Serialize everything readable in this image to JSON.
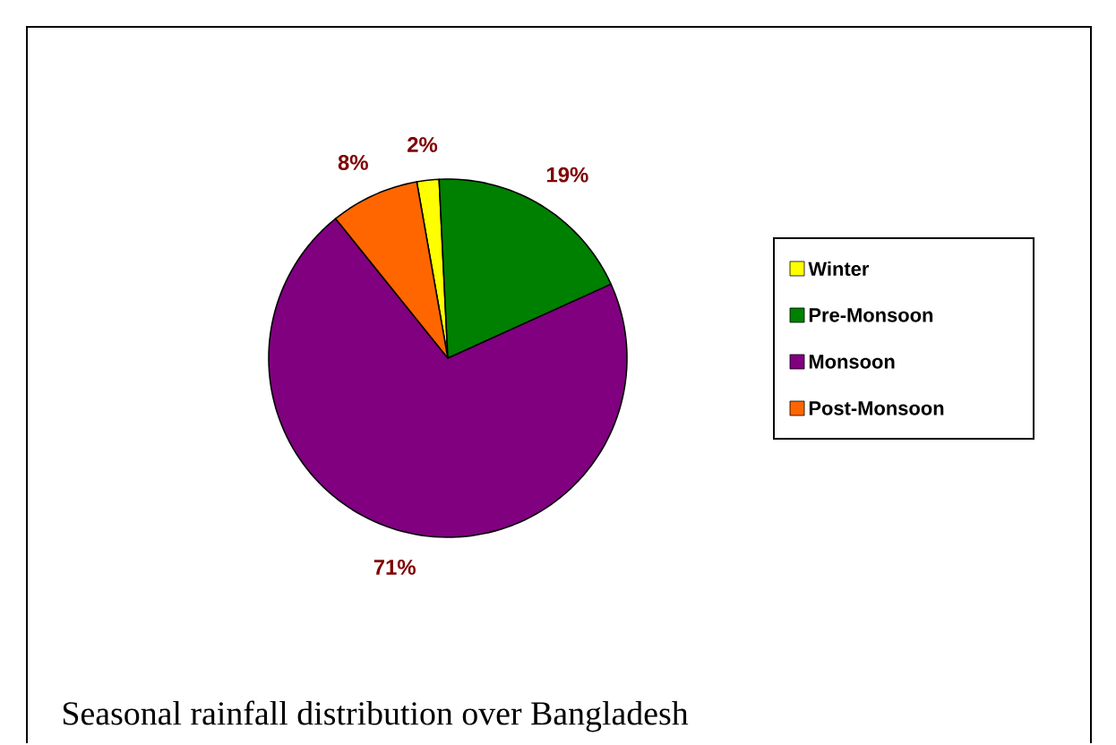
{
  "chart_data": {
    "type": "pie",
    "categories": [
      "Winter",
      "Pre-Monsoon",
      "Monsoon",
      "Post-Monsoon"
    ],
    "values": [
      2,
      19,
      71,
      8
    ],
    "colors": [
      "#ffff00",
      "#008000",
      "#800080",
      "#ff6600"
    ],
    "value_labels": [
      "2%",
      "19%",
      "71%",
      "8%"
    ],
    "legend": "right",
    "annotations": [
      "Seasonal rainfall distribution over Bangladesh"
    ]
  }
}
